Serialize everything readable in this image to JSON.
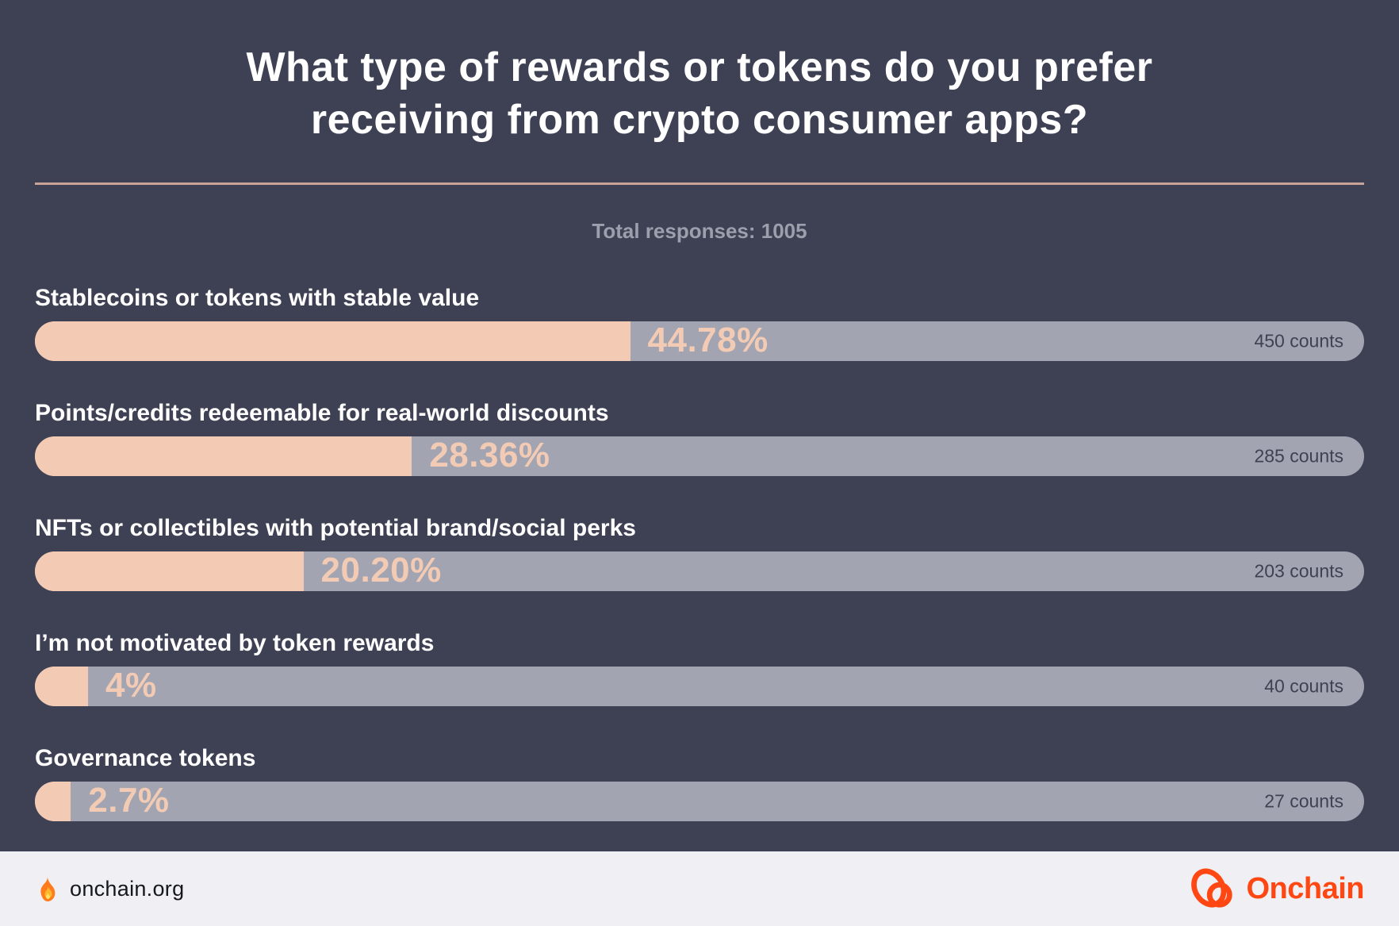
{
  "header": {
    "title_line1": "What type of rewards or tokens do you prefer",
    "title_line2": "receiving from crypto consumer apps?"
  },
  "chart_data": {
    "type": "bar",
    "orientation": "horizontal",
    "title": "What type of rewards or tokens do you prefer receiving from crypto consumer apps?",
    "subtitle": "Total responses: 1005",
    "total_responses": 1005,
    "categories": [
      "Stablecoins or tokens with stable value",
      "Points/credits redeemable for real-world discounts",
      "NFTs or collectibles with potential brand/social perks",
      "I’m not motivated by token rewards",
      "Governance tokens"
    ],
    "series": [
      {
        "name": "Share of responses (%)",
        "values": [
          44.78,
          28.36,
          20.2,
          4,
          2.7
        ]
      },
      {
        "name": "Counts",
        "values": [
          450,
          285,
          203,
          40,
          27
        ]
      }
    ],
    "value_labels": [
      "44.78%",
      "28.36%",
      "20.20%",
      "4%",
      "2.7%"
    ],
    "count_labels": [
      "450 counts",
      "285 counts",
      "203 counts",
      "40 counts",
      "27 counts"
    ],
    "xlim": [
      0,
      100
    ],
    "grid": false,
    "legend": false,
    "bar_color": "#f3cbb4",
    "track_color": "#a2a5b1"
  },
  "footer": {
    "site_label": "onchain.org",
    "brand_name": "Onchain"
  },
  "icons": {
    "flame": "flame-icon",
    "brand_logo": "onchain-logo-icon"
  },
  "colors": {
    "background": "#3e4154",
    "bar_fill": "#f3cbb4",
    "bar_track": "#a2a5b1",
    "percent_text": "#f3cbb4",
    "count_text": "#3d4152",
    "title_text": "#ffffff",
    "subtitle_text": "#9ca0ad",
    "divider": "#c9a395",
    "footer_background": "#f0f0f4",
    "footer_text": "#15171f",
    "brand_orange": "#ff4713"
  }
}
